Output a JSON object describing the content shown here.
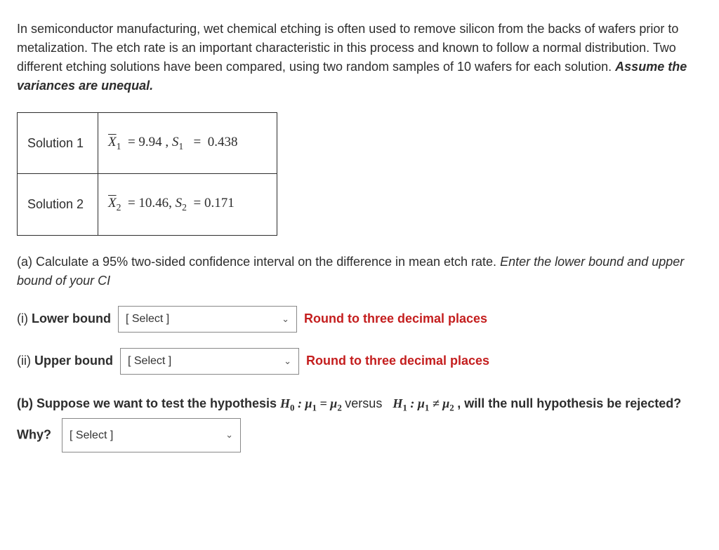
{
  "intro": {
    "text": "In semiconductor manufacturing, wet chemical etching is often used to remove silicon from the backs of wafers prior to metalization. The etch rate is an important characteristic in this process and known to follow a normal distribution. Two different etching solutions have been compared, using two random samples of 10 wafers for each solution. ",
    "emph": "Assume the variances are unequal."
  },
  "table": {
    "row1": {
      "label": "Solution 1",
      "xbar_sub": "1",
      "xbar_val": "9.94",
      "sep": " , ",
      "s_sub": "1",
      "s_val": "0.438"
    },
    "row2": {
      "label": "Solution 2",
      "xbar_sub": "2",
      "xbar_val": "10.46",
      "sep": ", ",
      "s_sub": "2",
      "s_val": "0.171"
    }
  },
  "partA": {
    "prefix": "(a) Calculate a 95% two-sided confidence interval on the difference in mean etch rate.  ",
    "instr": "Enter the lower bound and upper bound of your CI"
  },
  "lower": {
    "label_prefix": "(i) ",
    "label": "Lower bound",
    "select": "[ Select ]",
    "hint": "Round to three decimal places"
  },
  "upper": {
    "label_prefix": "(ii) ",
    "label": "Upper bound",
    "select": "[ Select ]",
    "hint": "Round to three decimal places"
  },
  "partB": {
    "prefix": "(b) Suppose we want to test the hypothesis ",
    "mid": " versus ",
    "suffix": ", will the null hypothesis be rejected? Why?",
    "select": "[ Select ]",
    "h0_label": "H",
    "h0_sub": "0",
    "h1_label": "H",
    "h1_sub": "1",
    "mu": "μ",
    "mu1_sub": "1",
    "mu2_sub": "2",
    "eq": " = ",
    "neq": " ≠ ",
    "colon": " : "
  },
  "colors": {
    "hint": "#c41e1e",
    "text": "#2d2d2d",
    "border": "#2d2d2d"
  }
}
